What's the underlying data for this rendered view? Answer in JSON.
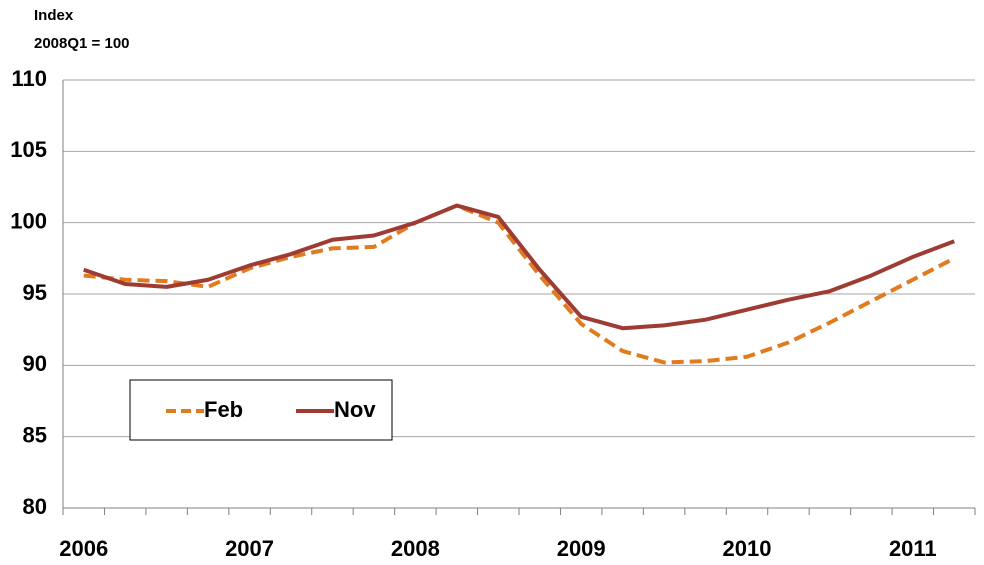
{
  "chart_data": {
    "type": "line",
    "y_axis_label": "Index",
    "y_axis_sublabel": "2008Q1 = 100",
    "categories": [
      "2006",
      null,
      null,
      null,
      "2007",
      null,
      null,
      null,
      "2008",
      null,
      null,
      null,
      "2009",
      null,
      null,
      null,
      "2010",
      null,
      null,
      null,
      "2011",
      null
    ],
    "series": [
      {
        "name": "Feb",
        "color": "#e07b1f",
        "dashed": true,
        "values": [
          96.3,
          96.0,
          95.9,
          95.5,
          96.8,
          97.6,
          98.2,
          98.3,
          100.0,
          101.2,
          100.0,
          96.3,
          92.9,
          91.0,
          90.2,
          90.3,
          90.6,
          91.6,
          93.0,
          94.5,
          96.0,
          97.5
        ]
      },
      {
        "name": "Nov",
        "color": "#9e3b33",
        "dashed": false,
        "values": [
          96.7,
          95.7,
          95.5,
          96.0,
          97.0,
          97.8,
          98.8,
          99.1,
          100.0,
          101.2,
          100.4,
          96.7,
          93.4,
          92.6,
          92.8,
          93.2,
          93.9,
          94.6,
          95.2,
          96.3,
          97.6,
          98.7
        ]
      }
    ],
    "ylim": [
      80,
      110
    ],
    "yticks": [
      80,
      85,
      90,
      95,
      100,
      105,
      110
    ],
    "grid": true,
    "legend": "lower left"
  }
}
